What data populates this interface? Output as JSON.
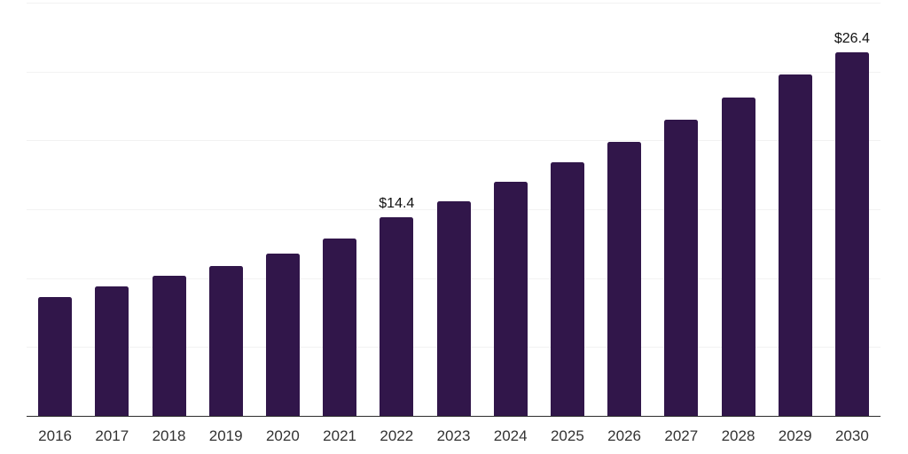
{
  "chart_data": {
    "type": "bar",
    "categories": [
      "2016",
      "2017",
      "2018",
      "2019",
      "2020",
      "2021",
      "2022",
      "2023",
      "2024",
      "2025",
      "2026",
      "2027",
      "2028",
      "2029",
      "2030"
    ],
    "values": [
      8.6,
      9.4,
      10.2,
      10.9,
      11.8,
      12.9,
      14.4,
      15.6,
      17.0,
      18.4,
      19.9,
      21.5,
      23.1,
      24.8,
      26.4
    ],
    "bar_labels": [
      "",
      "",
      "",
      "",
      "",
      "",
      "$14.4",
      "",
      "",
      "",
      "",
      "",
      "",
      "",
      "$26.4"
    ],
    "title": "",
    "xlabel": "",
    "ylabel": "",
    "ylim": [
      0,
      30
    ],
    "gridline_step": 5,
    "grid": "horizontal",
    "legend": "none",
    "colors": {
      "bar": "#31164a",
      "grid": "#f2f2f2",
      "axis": "#2d2d2d",
      "value_label": "#111111",
      "tick_label": "#333333",
      "background": "#ffffff"
    }
  }
}
